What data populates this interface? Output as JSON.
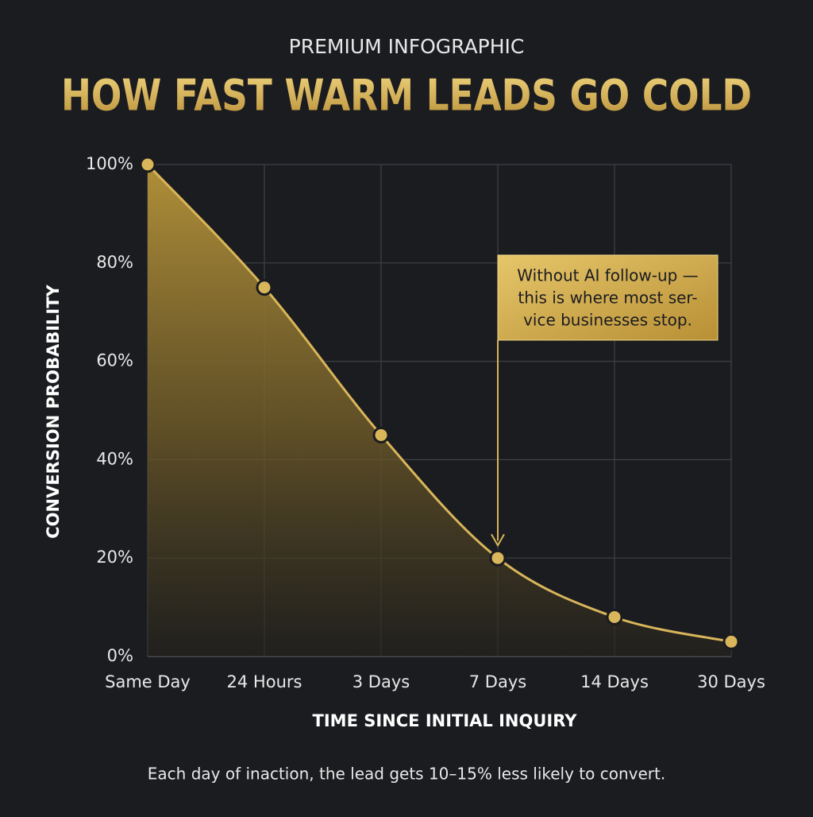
{
  "chart_data": {
    "type": "line",
    "supertitle": "PREMIUM INFOGRAPHIC",
    "title": "HOW FAST WARM LEADS GO COLD",
    "x_label": "TIME SINCE INITIAL INQUIRY",
    "y_label": "CONVERSION PROBABILITY",
    "footnote": "Each day of inaction, the lead gets 10–15% less likely to convert.",
    "categories": [
      "Same Day",
      "24 Hours",
      "3 Days",
      "7 Days",
      "14 Days",
      "30 Days"
    ],
    "values": [
      100,
      75,
      45,
      20,
      8,
      3
    ],
    "color": "#d9b65a",
    "ylim": [
      0,
      100
    ],
    "yticks": [
      {
        "value": 0,
        "label": "0%"
      },
      {
        "value": 20,
        "label": "20%"
      },
      {
        "value": 40,
        "label": "40%"
      },
      {
        "value": 60,
        "label": "60%"
      },
      {
        "value": 80,
        "label": "80%"
      },
      {
        "value": 100,
        "label": "100%"
      }
    ],
    "grid": true,
    "annotation": {
      "category_index": 3,
      "lines": [
        "Without AI follow-up —",
        "this is where most ser-",
        "vice businesses stop."
      ]
    }
  }
}
